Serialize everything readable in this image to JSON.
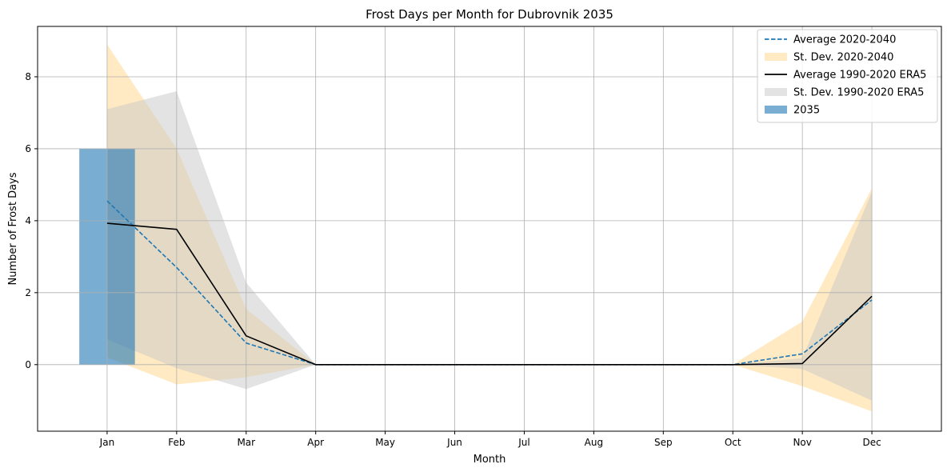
{
  "chart_data": {
    "type": "line",
    "title": "Frost Days per Month for Dubrovnik 2035",
    "xlabel": "Month",
    "ylabel": "Number of Frost Days",
    "categories": [
      "Jan",
      "Feb",
      "Mar",
      "Apr",
      "May",
      "Jun",
      "Jul",
      "Aug",
      "Sep",
      "Oct",
      "Nov",
      "Dec"
    ],
    "ylim": [
      -1.85,
      9.4
    ],
    "yticks": [
      0,
      2,
      4,
      6,
      8
    ],
    "grid": true,
    "legend_position": "top-right",
    "series": [
      {
        "name": "Average 2020-2040",
        "kind": "line",
        "style": "dashed",
        "color": "#1f77b4",
        "values": [
          4.55,
          2.7,
          0.6,
          0,
          0,
          0,
          0,
          0,
          0,
          0,
          0.3,
          1.8
        ]
      },
      {
        "name": "St. Dev. 2020-2040",
        "kind": "band",
        "color": "#ffe5b4",
        "lower": [
          0.2,
          -0.55,
          -0.35,
          0,
          0,
          0,
          0,
          0,
          0,
          0,
          -0.6,
          -1.3
        ],
        "upper": [
          8.9,
          6.0,
          1.55,
          0,
          0,
          0,
          0,
          0,
          0,
          0,
          1.2,
          4.9
        ]
      },
      {
        "name": "Average 1990-2020 ERA5",
        "kind": "line",
        "style": "solid",
        "color": "#000000",
        "values": [
          3.93,
          3.76,
          0.8,
          0,
          0,
          0,
          0,
          0,
          0,
          0,
          0.03,
          1.9
        ]
      },
      {
        "name": "St. Dev. 1990-2020 ERA5",
        "kind": "band",
        "color": "#c8c8c8",
        "lower": [
          0.7,
          -0.1,
          -0.68,
          0,
          0,
          0,
          0,
          0,
          0,
          0,
          -0.12,
          -1.0
        ],
        "upper": [
          7.1,
          7.6,
          2.28,
          0,
          0,
          0,
          0,
          0,
          0,
          0,
          0.18,
          4.8
        ]
      },
      {
        "name": "2035",
        "kind": "bar",
        "color": "#1f77b4",
        "values": [
          6,
          0,
          0,
          0,
          0,
          0,
          0,
          0,
          0,
          0,
          0,
          0
        ]
      }
    ]
  }
}
